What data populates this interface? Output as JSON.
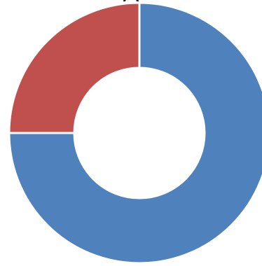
{
  "chart_data": {
    "type": "pie",
    "title": "A",
    "series": [
      {
        "values": [
          75,
          25
        ],
        "colors": [
          "#4f81bd",
          "#c0504d"
        ]
      }
    ],
    "categories": [
      "",
      ""
    ],
    "hole_ratio": 0.5
  }
}
